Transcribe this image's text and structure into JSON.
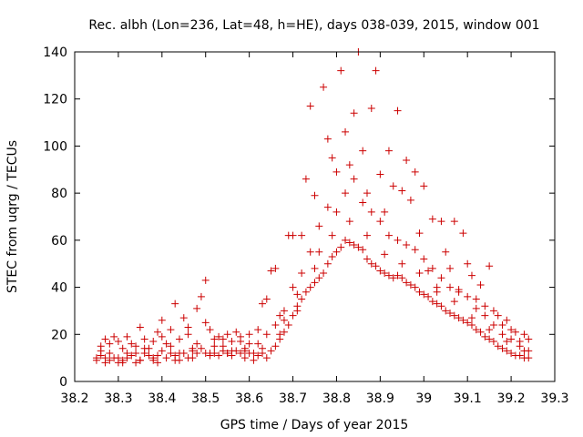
{
  "chart_data": {
    "type": "scatter",
    "title": "Rec. albh (Lon=236, Lat=48, h=HE), days 038-039, 2015, window 001",
    "xlabel": "GPS time / Days of year 2015",
    "ylabel": "STEC from uqrg / TECUs",
    "xlim": [
      38.2,
      39.3
    ],
    "ylim": [
      0,
      140
    ],
    "xticks": [
      "38.2",
      "38.3",
      "38.4",
      "38.5",
      "38.6",
      "38.7",
      "38.8",
      "38.9",
      "39",
      "39.1",
      "39.2",
      "39.3"
    ],
    "yticks": [
      "0",
      "20",
      "40",
      "60",
      "80",
      "100",
      "120",
      "140"
    ],
    "grid": false,
    "legend": "none",
    "marker": "plus",
    "color": "#cc0000",
    "series": [
      {
        "points": [
          [
            38.25,
            9
          ],
          [
            38.26,
            15
          ],
          [
            38.27,
            18
          ],
          [
            38.28,
            12
          ],
          [
            38.29,
            19
          ],
          [
            38.3,
            10
          ],
          [
            38.31,
            14
          ],
          [
            38.32,
            19
          ],
          [
            38.33,
            16
          ],
          [
            38.34,
            12
          ],
          [
            38.35,
            23
          ],
          [
            38.36,
            18
          ],
          [
            38.37,
            14
          ],
          [
            38.38,
            10
          ],
          [
            38.39,
            21
          ],
          [
            38.4,
            26
          ],
          [
            38.41,
            16
          ],
          [
            38.42,
            22
          ],
          [
            38.43,
            33
          ],
          [
            38.44,
            12
          ],
          [
            38.45,
            27
          ],
          [
            38.46,
            20
          ],
          [
            38.47,
            14
          ],
          [
            38.48,
            31
          ],
          [
            38.49,
            36
          ],
          [
            38.5,
            43
          ],
          [
            38.51,
            22
          ],
          [
            38.52,
            15
          ],
          [
            38.53,
            19
          ],
          [
            38.54,
            18
          ],
          [
            38.55,
            20
          ],
          [
            38.56,
            13
          ],
          [
            38.57,
            21
          ],
          [
            38.58,
            17
          ],
          [
            38.59,
            14
          ],
          [
            38.6,
            20
          ],
          [
            38.61,
            12
          ],
          [
            38.62,
            16
          ],
          [
            38.63,
            33
          ],
          [
            38.64,
            35
          ],
          [
            38.65,
            47
          ],
          [
            38.66,
            48
          ],
          [
            38.67,
            28
          ],
          [
            38.68,
            26
          ],
          [
            38.69,
            62
          ],
          [
            38.7,
            62
          ],
          [
            38.71,
            37
          ],
          [
            38.72,
            62
          ],
          [
            38.73,
            86
          ],
          [
            38.74,
            117
          ],
          [
            38.75,
            79
          ],
          [
            38.76,
            55
          ],
          [
            38.77,
            125
          ],
          [
            38.78,
            103
          ],
          [
            38.79,
            95
          ],
          [
            38.8,
            89
          ],
          [
            38.81,
            132
          ],
          [
            38.82,
            106
          ],
          [
            38.83,
            92
          ],
          [
            38.84,
            114
          ],
          [
            38.85,
            140
          ],
          [
            38.86,
            98
          ],
          [
            38.87,
            80
          ],
          [
            38.88,
            116
          ],
          [
            38.89,
            132
          ],
          [
            38.9,
            88
          ],
          [
            38.91,
            72
          ],
          [
            38.92,
            98
          ],
          [
            38.93,
            83
          ],
          [
            38.94,
            115
          ],
          [
            38.95,
            81
          ],
          [
            38.96,
            94
          ],
          [
            38.97,
            77
          ],
          [
            38.98,
            89
          ],
          [
            38.99,
            63
          ],
          [
            39.0,
            83
          ],
          [
            39.01,
            47
          ],
          [
            39.02,
            69
          ],
          [
            39.03,
            40
          ],
          [
            39.04,
            68
          ],
          [
            39.05,
            55
          ],
          [
            39.06,
            48
          ],
          [
            39.07,
            68
          ],
          [
            39.08,
            39
          ],
          [
            39.09,
            63
          ],
          [
            39.1,
            50
          ],
          [
            39.11,
            45
          ],
          [
            39.12,
            35
          ],
          [
            39.13,
            41
          ],
          [
            39.14,
            32
          ],
          [
            39.15,
            49
          ],
          [
            39.16,
            30
          ],
          [
            39.17,
            28
          ],
          [
            39.18,
            24
          ],
          [
            39.19,
            26
          ],
          [
            39.2,
            22
          ],
          [
            39.21,
            21
          ],
          [
            39.22,
            17
          ],
          [
            39.23,
            20
          ],
          [
            39.24,
            18
          ]
        ]
      },
      {
        "points": [
          [
            38.25,
            10
          ],
          [
            38.26,
            11
          ],
          [
            38.27,
            10
          ],
          [
            38.28,
            9
          ],
          [
            38.29,
            10
          ],
          [
            38.3,
            8
          ],
          [
            38.31,
            9
          ],
          [
            38.32,
            10
          ],
          [
            38.33,
            11
          ],
          [
            38.34,
            8
          ],
          [
            38.35,
            9
          ],
          [
            38.36,
            12
          ],
          [
            38.37,
            11
          ],
          [
            38.38,
            9
          ],
          [
            38.39,
            11
          ],
          [
            38.4,
            13
          ],
          [
            38.41,
            10
          ],
          [
            38.42,
            12
          ],
          [
            38.43,
            11
          ],
          [
            38.44,
            9
          ],
          [
            38.45,
            12
          ],
          [
            38.46,
            10
          ],
          [
            38.47,
            13
          ],
          [
            38.48,
            12
          ],
          [
            38.49,
            14
          ],
          [
            38.5,
            12
          ],
          [
            38.51,
            11
          ],
          [
            38.52,
            12
          ],
          [
            38.53,
            11
          ],
          [
            38.54,
            13
          ],
          [
            38.55,
            12
          ],
          [
            38.56,
            11
          ],
          [
            38.57,
            13
          ],
          [
            38.58,
            12
          ],
          [
            38.59,
            10
          ],
          [
            38.6,
            12
          ],
          [
            38.61,
            9
          ],
          [
            38.62,
            11
          ],
          [
            38.63,
            12
          ],
          [
            38.64,
            10
          ],
          [
            38.65,
            13
          ],
          [
            38.66,
            15
          ],
          [
            38.67,
            18
          ],
          [
            38.68,
            21
          ],
          [
            38.69,
            24
          ],
          [
            38.7,
            28
          ],
          [
            38.71,
            32
          ],
          [
            38.72,
            35
          ],
          [
            38.73,
            38
          ],
          [
            38.74,
            40
          ],
          [
            38.75,
            42
          ],
          [
            38.76,
            44
          ],
          [
            38.77,
            46
          ],
          [
            38.78,
            50
          ],
          [
            38.79,
            53
          ],
          [
            38.8,
            55
          ],
          [
            38.81,
            57
          ],
          [
            38.82,
            60
          ],
          [
            38.83,
            59
          ],
          [
            38.84,
            58
          ],
          [
            38.85,
            57
          ],
          [
            38.86,
            56
          ],
          [
            38.87,
            52
          ],
          [
            38.88,
            50
          ],
          [
            38.89,
            49
          ],
          [
            38.9,
            47
          ],
          [
            38.91,
            46
          ],
          [
            38.92,
            45
          ],
          [
            38.93,
            44
          ],
          [
            38.94,
            45
          ],
          [
            38.95,
            44
          ],
          [
            38.96,
            42
          ],
          [
            38.97,
            41
          ],
          [
            38.98,
            40
          ],
          [
            38.99,
            38
          ],
          [
            39.0,
            37
          ],
          [
            39.01,
            36
          ],
          [
            39.02,
            34
          ],
          [
            39.03,
            33
          ],
          [
            39.04,
            32
          ],
          [
            39.05,
            30
          ],
          [
            39.06,
            29
          ],
          [
            39.07,
            28
          ],
          [
            39.08,
            27
          ],
          [
            39.09,
            26
          ],
          [
            39.1,
            25
          ],
          [
            39.11,
            24
          ],
          [
            39.12,
            22
          ],
          [
            39.13,
            21
          ],
          [
            39.14,
            19
          ],
          [
            39.15,
            18
          ],
          [
            39.16,
            17
          ],
          [
            39.17,
            15
          ],
          [
            39.18,
            14
          ],
          [
            39.19,
            13
          ],
          [
            39.2,
            12
          ],
          [
            39.21,
            11
          ],
          [
            39.22,
            11
          ],
          [
            39.23,
            10
          ],
          [
            39.24,
            10
          ]
        ]
      },
      {
        "points": [
          [
            38.26,
            13
          ],
          [
            38.28,
            16
          ],
          [
            38.3,
            17
          ],
          [
            38.32,
            12
          ],
          [
            38.34,
            15
          ],
          [
            38.36,
            14
          ],
          [
            38.38,
            17
          ],
          [
            38.4,
            19
          ],
          [
            38.42,
            15
          ],
          [
            38.44,
            18
          ],
          [
            38.46,
            23
          ],
          [
            38.48,
            16
          ],
          [
            38.5,
            25
          ],
          [
            38.52,
            18
          ],
          [
            38.54,
            15
          ],
          [
            38.56,
            17
          ],
          [
            38.58,
            19
          ],
          [
            38.6,
            16
          ],
          [
            38.62,
            22
          ],
          [
            38.64,
            20
          ],
          [
            38.66,
            24
          ],
          [
            38.68,
            30
          ],
          [
            38.7,
            40
          ],
          [
            38.72,
            46
          ],
          [
            38.74,
            55
          ],
          [
            38.76,
            66
          ],
          [
            38.78,
            74
          ],
          [
            38.8,
            72
          ],
          [
            38.82,
            80
          ],
          [
            38.84,
            86
          ],
          [
            38.86,
            76
          ],
          [
            38.88,
            72
          ],
          [
            38.9,
            68
          ],
          [
            38.92,
            62
          ],
          [
            38.94,
            60
          ],
          [
            38.96,
            58
          ],
          [
            38.98,
            56
          ],
          [
            39.0,
            52
          ],
          [
            39.02,
            48
          ],
          [
            39.04,
            44
          ],
          [
            39.06,
            40
          ],
          [
            39.08,
            38
          ],
          [
            39.1,
            36
          ],
          [
            39.12,
            31
          ],
          [
            39.14,
            28
          ],
          [
            39.16,
            24
          ],
          [
            39.18,
            20
          ],
          [
            39.2,
            18
          ],
          [
            39.22,
            15
          ],
          [
            39.24,
            13
          ]
        ]
      },
      {
        "points": [
          [
            38.27,
            8
          ],
          [
            38.31,
            8
          ],
          [
            38.35,
            9
          ],
          [
            38.39,
            8
          ],
          [
            38.43,
            9
          ],
          [
            38.47,
            10
          ],
          [
            38.51,
            12
          ],
          [
            38.55,
            12
          ],
          [
            38.59,
            13
          ],
          [
            38.63,
            14
          ],
          [
            38.67,
            20
          ],
          [
            38.71,
            30
          ],
          [
            38.75,
            48
          ],
          [
            38.79,
            62
          ],
          [
            38.83,
            68
          ],
          [
            38.87,
            62
          ],
          [
            38.91,
            54
          ],
          [
            38.95,
            50
          ],
          [
            38.99,
            46
          ],
          [
            39.03,
            38
          ],
          [
            39.07,
            34
          ],
          [
            39.11,
            27
          ],
          [
            39.15,
            22
          ],
          [
            39.19,
            17
          ],
          [
            39.23,
            13
          ]
        ]
      }
    ]
  }
}
